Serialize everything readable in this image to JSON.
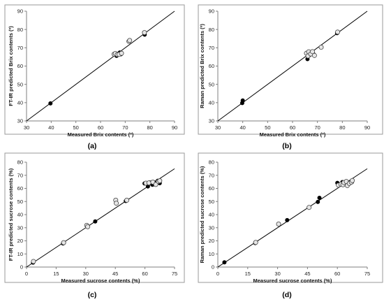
{
  "figure": {
    "panels": [
      {
        "id": "a",
        "label": "(a)"
      },
      {
        "id": "b",
        "label": "(b)"
      },
      {
        "id": "c",
        "label": "(c)"
      },
      {
        "id": "d",
        "label": "(d)"
      }
    ]
  },
  "colors": {
    "calibration_fill": "#000000",
    "validation_fill": "#e6e6e6",
    "validation_stroke": "#444444",
    "line": "#000000",
    "frame": "#9a9a9a",
    "background": "#ffffff"
  },
  "chart_data": [
    {
      "type": "scatter",
      "panel": "(a)",
      "title": "",
      "xlabel": "Measured Brix contents (º)",
      "ylabel": "FT-IR predicted Brix contents (º)",
      "xlim": [
        30,
        90
      ],
      "ylim": [
        30,
        90
      ],
      "xticks": [
        30,
        40,
        50,
        60,
        70,
        80,
        90
      ],
      "yticks": [
        30,
        40,
        50,
        60,
        70,
        80,
        90
      ],
      "grid": false,
      "legend": "none",
      "reference_line": "y = x",
      "series": [
        {
          "marker": "filled-circle",
          "points": [
            [
              39.7,
              39.6
            ],
            [
              65.8,
              66.2
            ],
            [
              66.5,
              65.6
            ],
            [
              67.2,
              66.7
            ],
            [
              68.3,
              66.5
            ],
            [
              67.8,
              67.4
            ],
            [
              77.9,
              77.2
            ]
          ]
        },
        {
          "marker": "open-circle",
          "points": [
            [
              65.5,
              66.5
            ],
            [
              66.0,
              66.9
            ],
            [
              66.8,
              66.3
            ],
            [
              67.5,
              66.4
            ],
            [
              68.5,
              67.0
            ],
            [
              71.5,
              73.5
            ],
            [
              71.8,
              74.0
            ],
            [
              77.8,
              78.3
            ]
          ]
        }
      ]
    },
    {
      "type": "scatter",
      "panel": "(b)",
      "title": "",
      "xlabel": "Measured Brix contents (º)",
      "ylabel": "Raman predicted Brix contents (º)",
      "xlim": [
        30,
        90
      ],
      "ylim": [
        30,
        90
      ],
      "xticks": [
        30,
        40,
        50,
        60,
        70,
        80,
        90
      ],
      "yticks": [
        30,
        40,
        50,
        60,
        70,
        80,
        90
      ],
      "grid": false,
      "legend": "none",
      "reference_line": "y = x",
      "series": [
        {
          "marker": "filled-circle",
          "points": [
            [
              39.8,
              39.8
            ],
            [
              40.0,
              41.2
            ],
            [
              66.0,
              63.8
            ],
            [
              66.8,
              66.0
            ],
            [
              67.5,
              67.2
            ],
            [
              68.5,
              66.4
            ],
            [
              77.9,
              78.0
            ]
          ]
        },
        {
          "marker": "open-circle",
          "points": [
            [
              65.6,
              67.0
            ],
            [
              66.2,
              65.5
            ],
            [
              66.5,
              67.8
            ],
            [
              67.3,
              66.6
            ],
            [
              68.0,
              67.9
            ],
            [
              68.8,
              65.8
            ],
            [
              71.5,
              70.3
            ],
            [
              78.1,
              78.6
            ]
          ]
        }
      ]
    },
    {
      "type": "scatter",
      "panel": "(c)",
      "title": "",
      "xlabel": "Measured sucrose contents (%)",
      "ylabel": "FT-IR predicted sucrose contents (%)",
      "xlim": [
        0,
        75
      ],
      "ylim": [
        0,
        80
      ],
      "xticks": [
        0,
        15,
        30,
        45,
        60,
        75
      ],
      "yticks": [
        0,
        10,
        20,
        30,
        40,
        50,
        60,
        70,
        80
      ],
      "grid": false,
      "legend": "none",
      "reference_line": "y = x",
      "series": [
        {
          "marker": "filled-circle",
          "points": [
            [
              3.3,
              3.4
            ],
            [
              18.5,
              18.0
            ],
            [
              34.8,
              34.8
            ],
            [
              50.3,
              50.4
            ],
            [
              59.8,
              63.8
            ],
            [
              61.5,
              61.5
            ],
            [
              62.5,
              64.5
            ],
            [
              63.8,
              62.8
            ],
            [
              65.0,
              64.5
            ],
            [
              66.5,
              65.8
            ],
            [
              67.5,
              64.0
            ]
          ]
        },
        {
          "marker": "open-circle",
          "points": [
            [
              3.5,
              4.3
            ],
            [
              18.8,
              18.6
            ],
            [
              30.5,
              31.8
            ],
            [
              31.0,
              30.8
            ],
            [
              45.2,
              51.0
            ],
            [
              45.5,
              48.7
            ],
            [
              50.8,
              51.0
            ],
            [
              60.5,
              64.0
            ],
            [
              62.0,
              64.2
            ],
            [
              64.0,
              64.8
            ],
            [
              65.5,
              63.0
            ],
            [
              66.8,
              65.3
            ],
            [
              67.5,
              65.8
            ]
          ]
        }
      ]
    },
    {
      "type": "scatter",
      "panel": "(d)",
      "title": "",
      "xlabel": "Measured sucrose contents (%)",
      "ylabel": "Raman predicted sucrose contents (%)",
      "xlim": [
        0,
        75
      ],
      "ylim": [
        0,
        80
      ],
      "xticks": [
        0,
        15,
        30,
        45,
        60,
        75
      ],
      "yticks": [
        0,
        10,
        20,
        30,
        40,
        50,
        60,
        70,
        80
      ],
      "grid": false,
      "legend": "none",
      "reference_line": "y = x",
      "series": [
        {
          "marker": "filled-circle",
          "points": [
            [
              3.3,
              3.6
            ],
            [
              18.8,
              18.3
            ],
            [
              34.8,
              35.8
            ],
            [
              50.2,
              49.7
            ],
            [
              51.0,
              52.8
            ],
            [
              60.0,
              64.2
            ],
            [
              61.3,
              63.0
            ],
            [
              62.5,
              64.8
            ],
            [
              63.8,
              64.0
            ],
            [
              65.2,
              63.5
            ],
            [
              66.3,
              64.5
            ],
            [
              67.3,
              64.8
            ]
          ]
        },
        {
          "marker": "open-circle",
          "points": [
            [
              19.0,
              18.8
            ],
            [
              30.5,
              32.8
            ],
            [
              45.8,
              45.5
            ],
            [
              60.5,
              62.5
            ],
            [
              61.8,
              63.2
            ],
            [
              62.8,
              62.8
            ],
            [
              63.3,
              64.5
            ],
            [
              64.5,
              65.3
            ],
            [
              65.0,
              62.2
            ],
            [
              66.0,
              63.8
            ],
            [
              67.0,
              64.8
            ],
            [
              67.5,
              66.0
            ]
          ]
        }
      ]
    }
  ]
}
